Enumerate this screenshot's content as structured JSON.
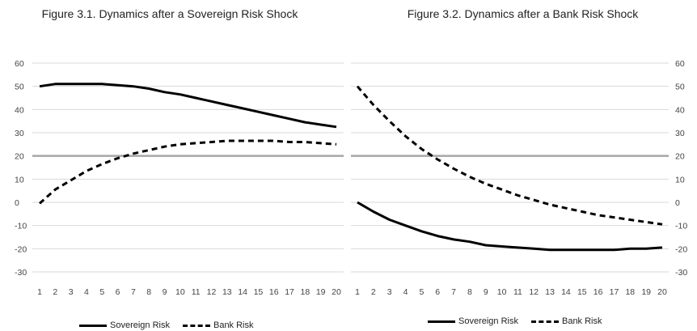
{
  "chart_data": [
    {
      "type": "line",
      "title": "Figure 3.1. Dynamics after a  Sovereign Risk Shock",
      "xlabel": "",
      "ylabel": "",
      "x": [
        1,
        2,
        3,
        4,
        5,
        6,
        7,
        8,
        9,
        10,
        11,
        12,
        13,
        14,
        15,
        16,
        17,
        18,
        19,
        20
      ],
      "ylim": [
        -30,
        60
      ],
      "yticks": [
        -30,
        -20,
        -10,
        0,
        10,
        20,
        30,
        40,
        50,
        60
      ],
      "y_axis_side": "left",
      "reference_line": 20,
      "grid": true,
      "legend_position": "bottom",
      "series": [
        {
          "name": "Sovereign Risk",
          "style": "solid",
          "values": [
            50,
            51,
            51,
            51,
            51,
            50.5,
            50,
            49,
            47.5,
            46.5,
            45,
            43.5,
            42,
            40.5,
            39,
            37.5,
            36,
            34.5,
            33.5,
            32.5
          ]
        },
        {
          "name": "Bank Risk",
          "style": "dashed",
          "values": [
            -0.5,
            5.5,
            9.5,
            13.5,
            16.5,
            19,
            21,
            22.5,
            24,
            25,
            25.5,
            26,
            26.5,
            26.5,
            26.5,
            26.5,
            26,
            26,
            25.5,
            25
          ]
        }
      ]
    },
    {
      "type": "line",
      "title": "Figure 3.2. Dynamics after a Bank Risk Shock",
      "xlabel": "",
      "ylabel": "",
      "x": [
        1,
        2,
        3,
        4,
        5,
        6,
        7,
        8,
        9,
        10,
        11,
        12,
        13,
        14,
        15,
        16,
        17,
        18,
        19,
        20
      ],
      "ylim": [
        -30,
        60
      ],
      "yticks": [
        -30,
        -20,
        -10,
        0,
        10,
        20,
        30,
        40,
        50,
        60
      ],
      "y_axis_side": "right",
      "reference_line": 20,
      "grid": true,
      "legend_position": "bottom",
      "series": [
        {
          "name": "Sovereign Risk",
          "style": "solid",
          "values": [
            0,
            -4,
            -7.5,
            -10,
            -12.5,
            -14.5,
            -16,
            -17,
            -18.5,
            -19,
            -19.5,
            -20,
            -20.5,
            -20.5,
            -20.5,
            -20.5,
            -20.5,
            -20,
            -20,
            -19.5
          ]
        },
        {
          "name": "Bank Risk",
          "style": "dashed",
          "values": [
            50,
            42,
            35,
            28.5,
            23,
            18.5,
            14.5,
            11,
            8,
            5.5,
            3,
            1,
            -1,
            -2.5,
            -4,
            -5.5,
            -6.5,
            -7.5,
            -8.5,
            -9.5
          ]
        }
      ]
    }
  ]
}
